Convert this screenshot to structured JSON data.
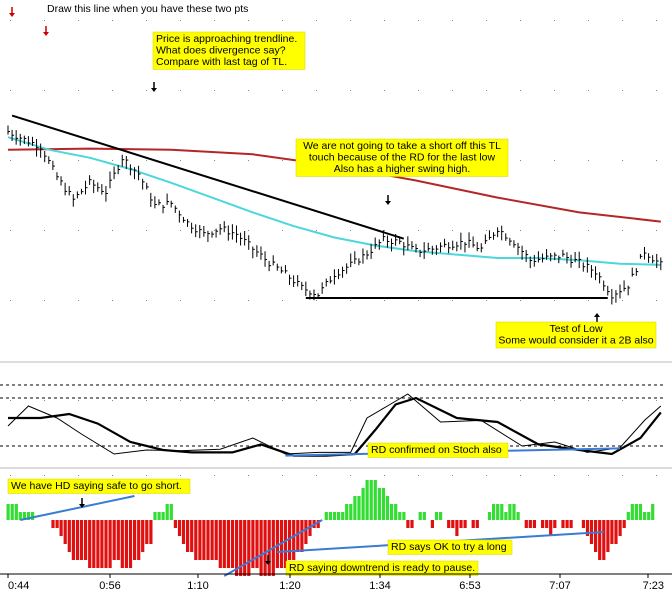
{
  "chart_data": {
    "type": "line",
    "title": "",
    "x_ticks": [
      "0:44",
      "0:56",
      "1:10",
      "1:20",
      "1:34",
      "6:53",
      "7:07",
      "7:23"
    ],
    "panels": {
      "price": {
        "series": [
          {
            "name": "",
            "kind": "ohlc-bars",
            "color": "#000000"
          },
          {
            "name": "",
            "kind": "moving-average",
            "color": "#4dd6dc",
            "x": [
              0,
              10,
              20,
              30,
              40,
              50,
              60,
              70,
              80,
              90,
              100,
              110,
              120,
              130,
              140,
              150,
              160
            ],
            "values": [
              20,
              9,
              2,
              -8,
              -20,
              -33,
              -46,
              -58,
              -68,
              -75,
              -80,
              -83,
              -86,
              -86,
              -88,
              -91,
              -92
            ]
          },
          {
            "name": "",
            "kind": "moving-average",
            "color": "#b52626",
            "x": [
              0,
              20,
              40,
              60,
              80,
              100,
              120,
              140,
              160
            ],
            "values": [
              9,
              10,
              9,
              5,
              -5,
              -18,
              -33,
              -46,
              -54
            ]
          }
        ],
        "trendline": {
          "x": [
            1,
            97
          ],
          "y": [
            39,
            -69
          ]
        },
        "support_line": {
          "x": [
            73,
            147
          ],
          "y": [
            -121,
            -121
          ]
        }
      },
      "stochastic": {
        "series": [
          {
            "name": "",
            "color": "#000000",
            "width": 2.2,
            "x": [
              0,
              8,
              15,
              22,
              30,
              38,
              45,
              55,
              62,
              70,
              78,
              85,
              90,
              95,
              100,
              110,
              120,
              130,
              140,
              148,
              155,
              160
            ],
            "values": [
              55,
              55,
              60,
              48,
              25,
              15,
              12,
              12,
              22,
              8,
              8,
              10,
              40,
              72,
              80,
              55,
              50,
              22,
              15,
              10,
              30,
              62
            ]
          },
          {
            "name": "",
            "color": "#000000",
            "width": 1,
            "x": [
              0,
              5,
              12,
              18,
              26,
              34,
              42,
              52,
              60,
              68,
              76,
              84,
              88,
              93,
              98,
              106,
              116,
              126,
              134,
              142,
              150,
              156,
              160
            ],
            "values": [
              45,
              70,
              55,
              35,
              10,
              15,
              14,
              16,
              30,
              10,
              12,
              12,
              55,
              70,
              85,
              50,
              52,
              20,
              25,
              12,
              18,
              52,
              70
            ]
          }
        ],
        "levels": [
          80,
          20
        ],
        "divergence_line": {
          "x": [
            68,
            150
          ],
          "y": [
            8,
            17
          ]
        }
      },
      "histogram": {
        "x_start": 0,
        "x_step": 1,
        "values": [
          2,
          2,
          2,
          1,
          1,
          1,
          1,
          0,
          0,
          0,
          0,
          -1,
          -1,
          -2,
          -3,
          -4,
          -5,
          -5,
          -5,
          -5,
          -6,
          -6,
          -6,
          -6,
          -6,
          -6,
          -5,
          -5,
          -6,
          -6,
          -6,
          -5,
          -5,
          -4,
          -3,
          -3,
          1,
          1,
          1,
          2,
          2,
          -1,
          -2,
          -3,
          -4,
          -4,
          -5,
          -5,
          -5,
          -5,
          -5,
          -5,
          -6,
          -6,
          -6,
          -6,
          -7,
          -7,
          -7,
          -7,
          -6,
          -6,
          -7,
          -7,
          -7,
          -7,
          -6,
          -6,
          -6,
          -5,
          -5,
          -4,
          -4,
          -3,
          -2,
          -1,
          -1,
          0,
          1,
          1,
          1,
          1,
          1,
          2,
          2,
          3,
          3,
          4,
          5,
          5,
          5,
          4,
          4,
          3,
          2,
          2,
          1,
          1,
          -1,
          -1,
          0,
          1,
          1,
          0,
          -1,
          1,
          1,
          0,
          -1,
          -1,
          -2,
          -1,
          -1,
          0,
          -1,
          -1,
          0,
          0,
          1,
          2,
          2,
          2,
          1,
          2,
          2,
          1,
          0,
          -1,
          -1,
          -1,
          0,
          -1,
          -1,
          -2,
          -1,
          0,
          -1,
          -1,
          -1,
          0,
          0,
          -1,
          -2,
          -3,
          -4,
          -5,
          -5,
          -4,
          -3,
          -3,
          -2,
          -1,
          1,
          2,
          2,
          2,
          1,
          1,
          2
        ],
        "hd_line": {
          "x": [
            3,
            31
          ],
          "y": [
            0,
            3
          ]
        },
        "rd_line_1": {
          "x": [
            53,
            77
          ],
          "y": [
            -7,
            0
          ]
        },
        "rd_line_2": {
          "x": [
            66,
            146
          ],
          "y": [
            -4,
            -1.5
          ]
        }
      }
    },
    "annotations": [
      {
        "id": "draw-line",
        "text": [
          "Draw this line when you have these two pts"
        ],
        "boxed": false
      },
      {
        "id": "approaching",
        "text": [
          "Price is approaching trendline.",
          "What does divergence say?",
          "Compare with last tag of TL."
        ],
        "boxed": true
      },
      {
        "id": "not-short",
        "text": [
          "We are not going to take a short off this TL",
          "touch because of the RD for the last low",
          "Also has a higher swing high."
        ],
        "boxed": true
      },
      {
        "id": "test-of-low",
        "text": [
          "Test of Low",
          "Some would consider it a 2B also"
        ],
        "boxed": true
      },
      {
        "id": "rd-stoch",
        "text": [
          "RD confirmed on Stoch also"
        ],
        "boxed": true
      },
      {
        "id": "hd-short",
        "text": [
          "We have HD saying safe to go short."
        ],
        "boxed": true
      },
      {
        "id": "rd-long",
        "text": [
          "RD says OK to try a long"
        ],
        "boxed": true
      },
      {
        "id": "rd-pause",
        "text": [
          "RD saying downtrend is ready to pause."
        ],
        "boxed": true
      }
    ],
    "arrows": [
      {
        "id": "pt1",
        "direction": "down",
        "color": "#cc0000"
      },
      {
        "id": "pt2",
        "direction": "down",
        "color": "#cc0000"
      },
      {
        "id": "tl-touch-1",
        "direction": "down",
        "color": "#000000"
      },
      {
        "id": "tl-touch-2",
        "direction": "down",
        "color": "#000000"
      },
      {
        "id": "low-test",
        "direction": "up",
        "color": "#000000"
      },
      {
        "id": "hist-1",
        "direction": "down",
        "color": "#000000"
      },
      {
        "id": "hist-2",
        "direction": "down",
        "color": "#000000"
      }
    ],
    "colors": {
      "background": "#ffffff",
      "price_bars": "#000000",
      "fast_ma": "#4dd6dc",
      "slow_ma": "#b52626",
      "trendline": "#000000",
      "divergence": "#3a7bd5",
      "hist_up": "#33dd33",
      "hist_down": "#e01010",
      "note_fill": "#ffff00",
      "grid": "#888888"
    },
    "grid": true,
    "legend": "none"
  }
}
